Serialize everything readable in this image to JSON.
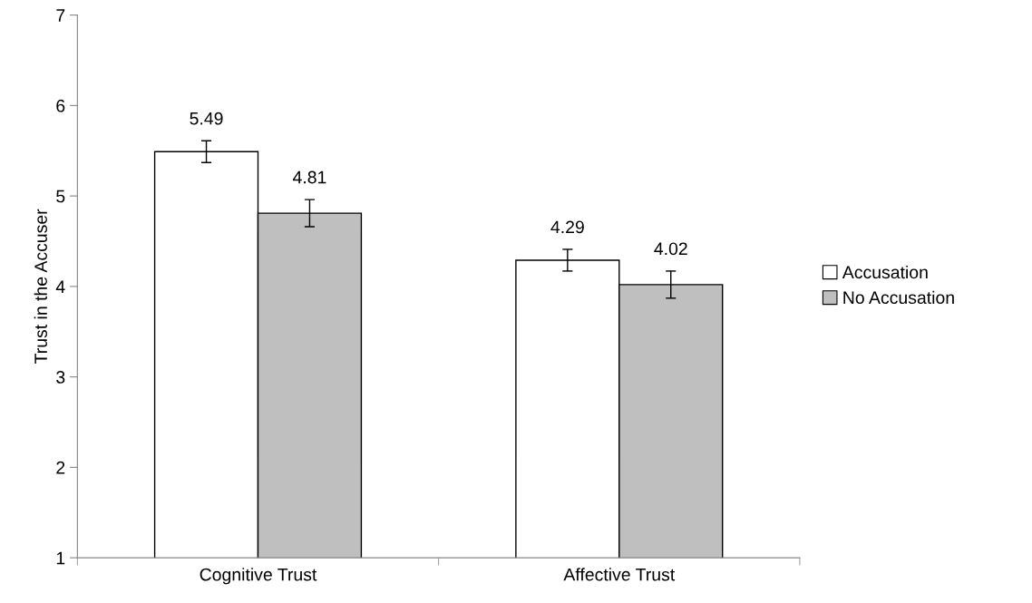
{
  "chart_data": {
    "type": "bar",
    "ylabel": "Trust in the Accuser",
    "categories": [
      "Cognitive Trust",
      "Affective Trust"
    ],
    "series": [
      {
        "name": "Accusation",
        "color": "#ffffff",
        "values": [
          5.49,
          4.29
        ],
        "errors": [
          0.12,
          0.12
        ]
      },
      {
        "name": "No Accusation",
        "color": "#bfbfbf",
        "values": [
          4.81,
          4.02
        ],
        "errors": [
          0.15,
          0.15
        ]
      }
    ],
    "ylim": [
      1,
      7
    ],
    "yticks": [
      1,
      2,
      3,
      4,
      5,
      6,
      7
    ],
    "grid": false,
    "legend": "right",
    "data_labels": true
  }
}
